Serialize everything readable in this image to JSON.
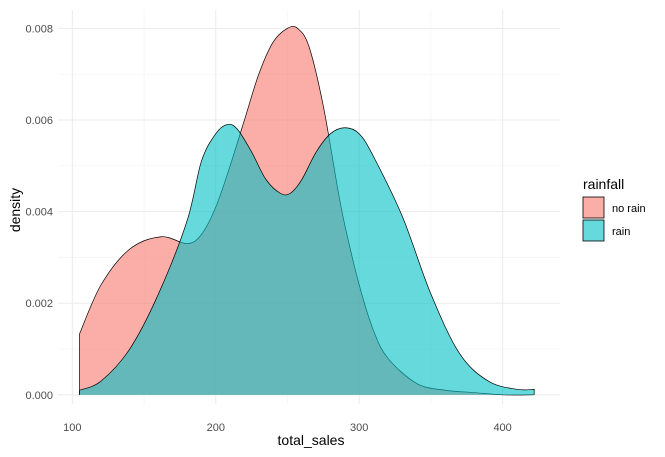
{
  "chart_data": {
    "type": "area",
    "xlabel": "total_sales",
    "ylabel": "density",
    "xlim": [
      90,
      440
    ],
    "ylim": [
      -0.0002,
      0.0084
    ],
    "x_ticks": [
      100,
      200,
      300,
      400
    ],
    "x_tick_labels": [
      "100",
      "200",
      "300",
      "400"
    ],
    "y_ticks": [
      0.0,
      0.002,
      0.004,
      0.006,
      0.008
    ],
    "y_tick_labels": [
      "0.000",
      "0.002",
      "0.004",
      "0.006",
      "0.008"
    ],
    "grid": true,
    "legend": {
      "title": "rainfall",
      "position": "right",
      "entries": [
        "no rain",
        "rain"
      ]
    },
    "series": [
      {
        "name": "no rain",
        "color": "#F8766D",
        "x": [
          105,
          120,
          140,
          162,
          180,
          190,
          200,
          210,
          220,
          230,
          240,
          250,
          257,
          265,
          275,
          285,
          290,
          300,
          310,
          320,
          340,
          360,
          380,
          400,
          422
        ],
        "y": [
          0.00133,
          0.0024,
          0.00318,
          0.00345,
          0.0033,
          0.0035,
          0.0041,
          0.005,
          0.006,
          0.007,
          0.0077,
          0.008,
          0.008,
          0.0076,
          0.0063,
          0.0045,
          0.0037,
          0.0024,
          0.0014,
          0.0008,
          0.00025,
          0.0001,
          5e-05,
          0.0,
          0.0
        ]
      },
      {
        "name": "rain",
        "color": "#00BFC4",
        "x": [
          105,
          120,
          140,
          160,
          180,
          190,
          200,
          208,
          215,
          225,
          235,
          245,
          252,
          260,
          270,
          280,
          290,
          300,
          310,
          330,
          350,
          370,
          390,
          410,
          422
        ],
        "y": [
          0.0001,
          0.0003,
          0.001,
          0.0022,
          0.0038,
          0.0051,
          0.0057,
          0.0059,
          0.0058,
          0.0053,
          0.0047,
          0.0044,
          0.0044,
          0.0047,
          0.0053,
          0.0057,
          0.00583,
          0.0057,
          0.0052,
          0.0039,
          0.0022,
          0.0009,
          0.0003,
          0.00012,
          0.00012
        ]
      }
    ]
  }
}
